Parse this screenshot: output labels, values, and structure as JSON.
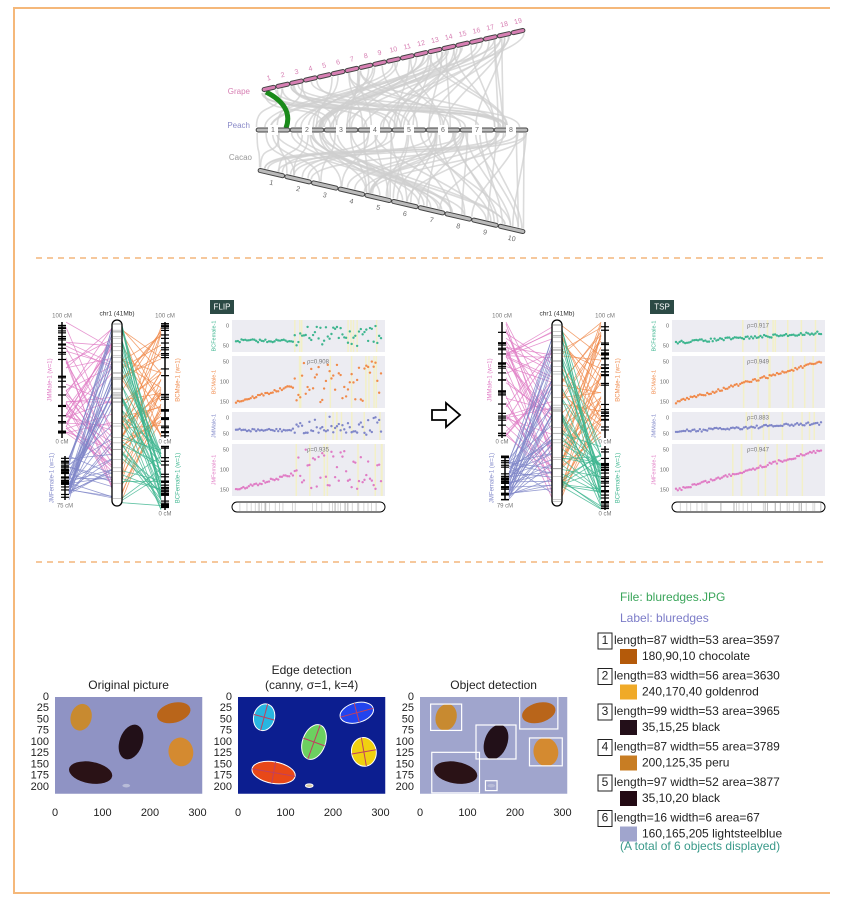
{
  "synteny": {
    "genomes": [
      {
        "name": "Grape",
        "chromosomes": [
          "1",
          "2",
          "3",
          "4",
          "5",
          "6",
          "7",
          "8",
          "9",
          "10",
          "11",
          "12",
          "13",
          "14",
          "15",
          "16",
          "17",
          "18",
          "19"
        ]
      },
      {
        "name": "Peach",
        "chromosomes": [
          "1",
          "2",
          "3",
          "4",
          "5",
          "6",
          "7",
          "8"
        ]
      },
      {
        "name": "Cacao",
        "chromosomes": [
          "1",
          "2",
          "3",
          "4",
          "5",
          "6",
          "7",
          "8",
          "9",
          "10"
        ]
      }
    ]
  },
  "maps": [
    {
      "method": "FLIP",
      "chromosome": "chr1 (41Mb)",
      "left_maps": [
        {
          "name": "JMMale-1 (w=1)",
          "top": "100 cM",
          "bottom": "0 cM"
        },
        {
          "name": "JMFemale-1 (w=1)",
          "bottom": "75 cM"
        }
      ],
      "right_maps": [
        {
          "name": "BCMale-1 (w=1)",
          "top": "100 cM",
          "bottom": "0 cM"
        },
        {
          "name": "BCFemale-1 (w=1)",
          "bottom": "0 cM"
        }
      ],
      "tracks": [
        {
          "name": "BCFemale-1",
          "ticks": [
            "0",
            "50"
          ]
        },
        {
          "name": "BCMale-1",
          "rho": "ρ=0.908",
          "ticks": [
            "50",
            "100",
            "150"
          ]
        },
        {
          "name": "JMMale-1",
          "ticks": [
            "0",
            "50"
          ]
        },
        {
          "name": "JMFemale-1",
          "rho": "ρ=0.935",
          "ticks": [
            "50",
            "100",
            "150"
          ]
        }
      ]
    },
    {
      "method": "TSP",
      "chromosome": "chr1 (41Mb)",
      "left_maps": [
        {
          "name": "JMMale-1 (w=1)",
          "top": "100 cM",
          "bottom": "0 cM"
        },
        {
          "name": "JMFemale-1 (w=1)",
          "bottom": "79 cM"
        }
      ],
      "right_maps": [
        {
          "name": "BCMale-1 (w=1)",
          "top": "100 cM",
          "bottom": "0 cM"
        },
        {
          "name": "BCFemale-1 (w=1)",
          "bottom": "0 cM"
        }
      ],
      "tracks": [
        {
          "name": "BCFemale-1",
          "rho": "ρ=0.917",
          "ticks": [
            "0",
            "50"
          ]
        },
        {
          "name": "BCMale-1",
          "rho": "ρ=0.949",
          "ticks": [
            "50",
            "100",
            "150"
          ]
        },
        {
          "name": "JMMale-1",
          "rho": "ρ=0.883",
          "ticks": [
            "0",
            "50"
          ]
        },
        {
          "name": "JMFemale-1",
          "rho": "ρ=0.947",
          "ticks": [
            "50",
            "100",
            "150"
          ]
        }
      ]
    }
  ],
  "images": {
    "panels": [
      {
        "title": [
          "Original picture"
        ]
      },
      {
        "title": [
          "Edge detection",
          "(canny, σ=1, k=4)"
        ]
      },
      {
        "title": [
          "Object detection"
        ]
      }
    ],
    "yticks": [
      0,
      25,
      50,
      75,
      100,
      125,
      150,
      175,
      200
    ],
    "xticks": [
      0,
      100,
      200,
      300
    ]
  },
  "results": {
    "file": "File: bluredges.JPG",
    "label": "Label: bluredges",
    "objects": [
      {
        "id": "1",
        "measures": "length=87 width=53 area=3597",
        "color_text": "180,90,10 chocolate",
        "color": "rgb(180,90,10)"
      },
      {
        "id": "2",
        "measures": "length=83 width=56 area=3630",
        "color_text": "240,170,40 goldenrod",
        "color": "rgb(240,170,40)"
      },
      {
        "id": "3",
        "measures": "length=99 width=53 area=3965",
        "color_text": "35,15,25 black",
        "color": "rgb(35,15,25)"
      },
      {
        "id": "4",
        "measures": "length=87 width=55 area=3789",
        "color_text": "200,125,35 peru",
        "color": "rgb(200,125,35)"
      },
      {
        "id": "5",
        "measures": "length=97 width=52 area=3877",
        "color_text": "35,10,20 black",
        "color": "rgb(35,10,20)"
      },
      {
        "id": "6",
        "measures": "length=16 width=6 area=67",
        "color_text": "160,165,205 lightsteelblue",
        "color": "rgb(160,165,205)"
      }
    ],
    "total": "(A total of 6 objects displayed)"
  }
}
